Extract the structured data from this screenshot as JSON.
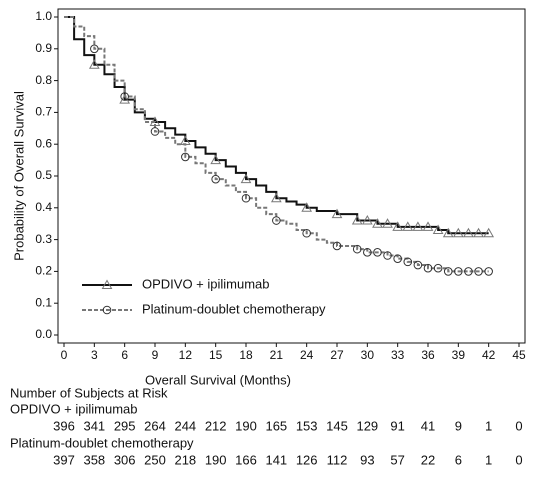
{
  "chart_data": {
    "type": "line",
    "xlabel": "Overall Survival (Months)",
    "ylabel": "Probability of Overall Survival",
    "x": [
      0,
      1,
      2,
      3,
      4,
      5,
      6,
      7,
      8,
      9,
      10,
      11,
      12,
      13,
      14,
      15,
      16,
      17,
      18,
      19,
      20,
      21,
      22,
      23,
      24,
      25,
      26,
      27,
      28,
      29,
      30,
      31,
      32,
      33,
      34,
      35,
      36,
      37,
      38,
      39,
      40,
      41,
      42
    ],
    "series": [
      {
        "name": "OPDIVO + ipilimumab",
        "color": "#111111",
        "marker": "triangle",
        "dashed": false,
        "values": [
          1.0,
          0.93,
          0.88,
          0.85,
          0.82,
          0.78,
          0.74,
          0.7,
          0.68,
          0.67,
          0.65,
          0.63,
          0.61,
          0.59,
          0.57,
          0.55,
          0.53,
          0.51,
          0.49,
          0.47,
          0.45,
          0.43,
          0.42,
          0.41,
          0.4,
          0.39,
          0.39,
          0.38,
          0.38,
          0.36,
          0.36,
          0.35,
          0.35,
          0.34,
          0.34,
          0.34,
          0.34,
          0.33,
          0.32,
          0.32,
          0.32,
          0.32,
          0.32
        ]
      },
      {
        "name": "Platinum-doublet chemotherapy",
        "color": "#777777",
        "marker": "circle",
        "dashed": true,
        "values": [
          1.0,
          0.97,
          0.94,
          0.9,
          0.85,
          0.8,
          0.75,
          0.71,
          0.67,
          0.64,
          0.62,
          0.6,
          0.56,
          0.54,
          0.51,
          0.49,
          0.47,
          0.45,
          0.43,
          0.4,
          0.38,
          0.36,
          0.35,
          0.33,
          0.32,
          0.3,
          0.29,
          0.28,
          0.28,
          0.27,
          0.26,
          0.26,
          0.25,
          0.24,
          0.23,
          0.22,
          0.21,
          0.21,
          0.2,
          0.2,
          0.2,
          0.2,
          0.2
        ]
      }
    ],
    "xlim": [
      0,
      45
    ],
    "xticks": [
      0,
      3,
      6,
      9,
      12,
      15,
      18,
      21,
      24,
      27,
      30,
      33,
      36,
      39,
      42,
      45
    ],
    "ylim": [
      0,
      1
    ],
    "yticks": [
      {
        "value": 0,
        "label": "0.0"
      },
      0.1,
      0.2,
      0.3,
      0.4,
      0.5,
      0.6,
      0.7,
      0.8,
      0.9,
      {
        "value": 1,
        "label": "1.0"
      }
    ],
    "legend": "lower-left"
  },
  "risk_table": {
    "title": "Number of Subjects at Risk",
    "groups": [
      {
        "name": "OPDIVO + ipilimumab",
        "values": [
          396,
          341,
          295,
          264,
          244,
          212,
          190,
          165,
          153,
          145,
          129,
          91,
          41,
          9,
          1,
          0
        ]
      },
      {
        "name": "Platinum-doublet chemotherapy",
        "values": [
          397,
          358,
          306,
          250,
          218,
          190,
          166,
          141,
          126,
          112,
          93,
          57,
          22,
          6,
          1,
          0
        ]
      }
    ]
  }
}
